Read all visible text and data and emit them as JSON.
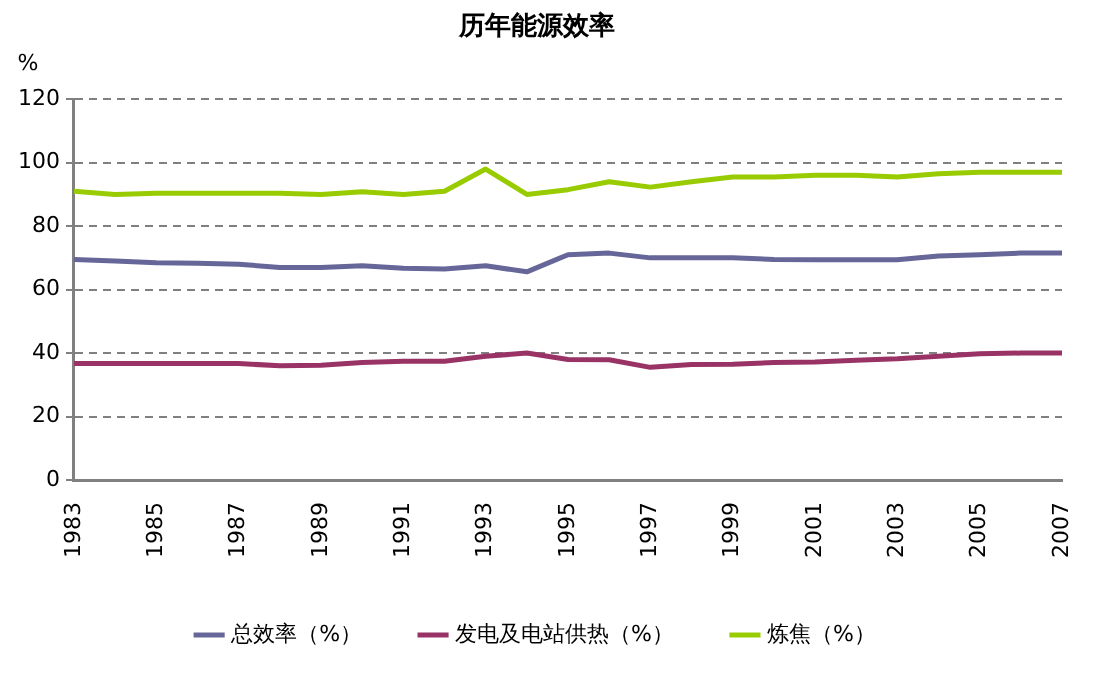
{
  "chart_data": {
    "type": "line",
    "title": "历年能源效率",
    "ylabel": "%",
    "x": [
      1983,
      1984,
      1985,
      1986,
      1987,
      1988,
      1989,
      1990,
      1991,
      1992,
      1993,
      1994,
      1995,
      1996,
      1997,
      1998,
      1999,
      2000,
      2001,
      2002,
      2003,
      2004,
      2005,
      2006,
      2007
    ],
    "xlim": [
      1983,
      2007
    ],
    "xticks": [
      1983,
      1985,
      1987,
      1989,
      1991,
      1993,
      1995,
      1997,
      1999,
      2001,
      2003,
      2005,
      2007
    ],
    "ylim": [
      0,
      120
    ],
    "yticks": [
      0,
      20,
      40,
      60,
      80,
      100,
      120
    ],
    "grid": "y",
    "legend": "bottom",
    "marker": "none",
    "line_style": "solid",
    "series": [
      {
        "name": "总效率（%）",
        "color": "#666699",
        "values": [
          69.5,
          69,
          68.5,
          68.3,
          68,
          67,
          67,
          67.5,
          66.7,
          66.5,
          67.5,
          65.6,
          71,
          71.5,
          70,
          70,
          70,
          69.5,
          69.4,
          69.4,
          69.4,
          70.6,
          71,
          71.5,
          71.5
        ]
      },
      {
        "name": "发电及电站供热（%）",
        "color": "#993366",
        "values": [
          36.7,
          36.7,
          36.7,
          36.7,
          36.7,
          36,
          36.2,
          37,
          37.4,
          37.4,
          39,
          40,
          38,
          37.9,
          35.5,
          36.4,
          36.5,
          37,
          37.2,
          37.7,
          38.2,
          39,
          39.8,
          40,
          40
        ]
      },
      {
        "name": "炼焦（%）",
        "color": "#99cc00",
        "values": [
          91,
          90,
          90.4,
          90.4,
          90.4,
          90.4,
          90,
          90.8,
          90,
          91,
          98,
          90,
          91.5,
          94,
          92.3,
          94,
          95.5,
          95.5,
          96,
          96,
          95.5,
          96.5,
          97,
          97,
          97
        ]
      }
    ]
  }
}
